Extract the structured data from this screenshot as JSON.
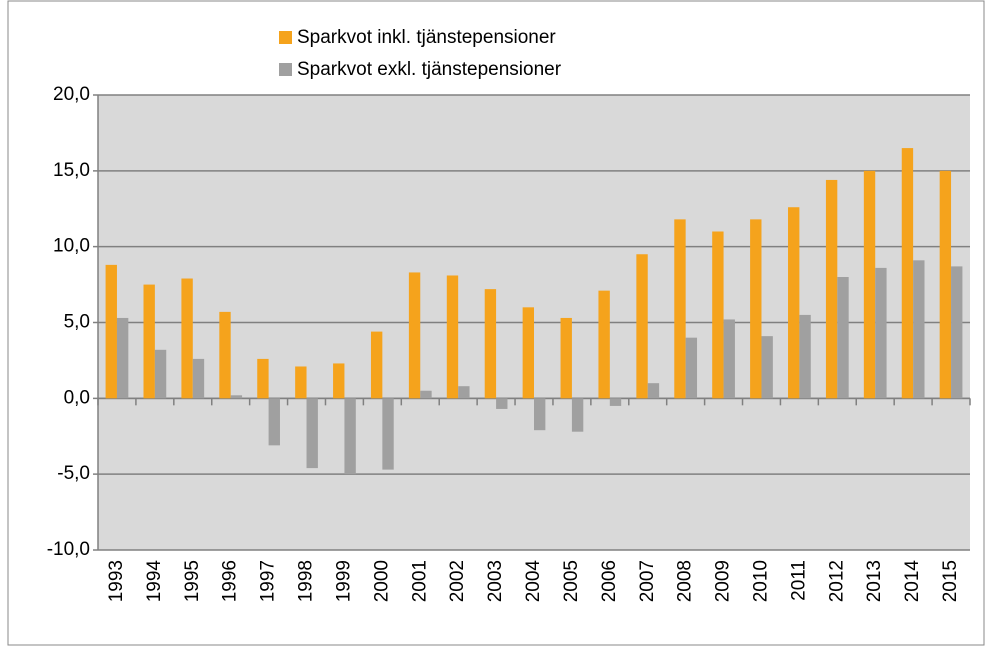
{
  "chart_data": {
    "type": "bar",
    "categories": [
      "1993",
      "1994",
      "1995",
      "1996",
      "1997",
      "1998",
      "1999",
      "2000",
      "2001",
      "2002",
      "2003",
      "2004",
      "2005",
      "2006",
      "2007",
      "2008",
      "2009",
      "2010",
      "2011",
      "2012",
      "2013",
      "2014",
      "2015"
    ],
    "series": [
      {
        "name": "Sparkvot inkl. tjänstepensioner",
        "color": "#f5a31c",
        "values": [
          8.8,
          7.5,
          7.9,
          5.7,
          2.6,
          2.1,
          2.3,
          4.4,
          8.3,
          8.1,
          7.2,
          6.0,
          5.3,
          7.1,
          9.5,
          11.8,
          11.0,
          11.8,
          12.6,
          14.4,
          15.0,
          16.5,
          15.0
        ]
      },
      {
        "name": "Sparkvot exkl. tjänstepensioner",
        "color": "#a0a0a0",
        "values": [
          5.3,
          3.2,
          2.6,
          0.2,
          -3.1,
          -4.6,
          -5.0,
          -4.7,
          0.5,
          0.8,
          -0.7,
          -2.1,
          -2.2,
          -0.5,
          1.0,
          4.0,
          5.2,
          4.1,
          5.5,
          8.0,
          8.6,
          9.1,
          8.7
        ]
      }
    ],
    "ylim": [
      -10,
      20
    ],
    "yticks": [
      {
        "value": -10,
        "label": "-10,0"
      },
      {
        "value": -5,
        "label": "-5,0"
      },
      {
        "value": 0,
        "label": "0,0"
      },
      {
        "value": 5,
        "label": "5,0"
      },
      {
        "value": 10,
        "label": "10,0"
      },
      {
        "value": 15,
        "label": "15,0"
      },
      {
        "value": 20,
        "label": "20,0"
      }
    ],
    "grid": true,
    "legend": "top"
  }
}
